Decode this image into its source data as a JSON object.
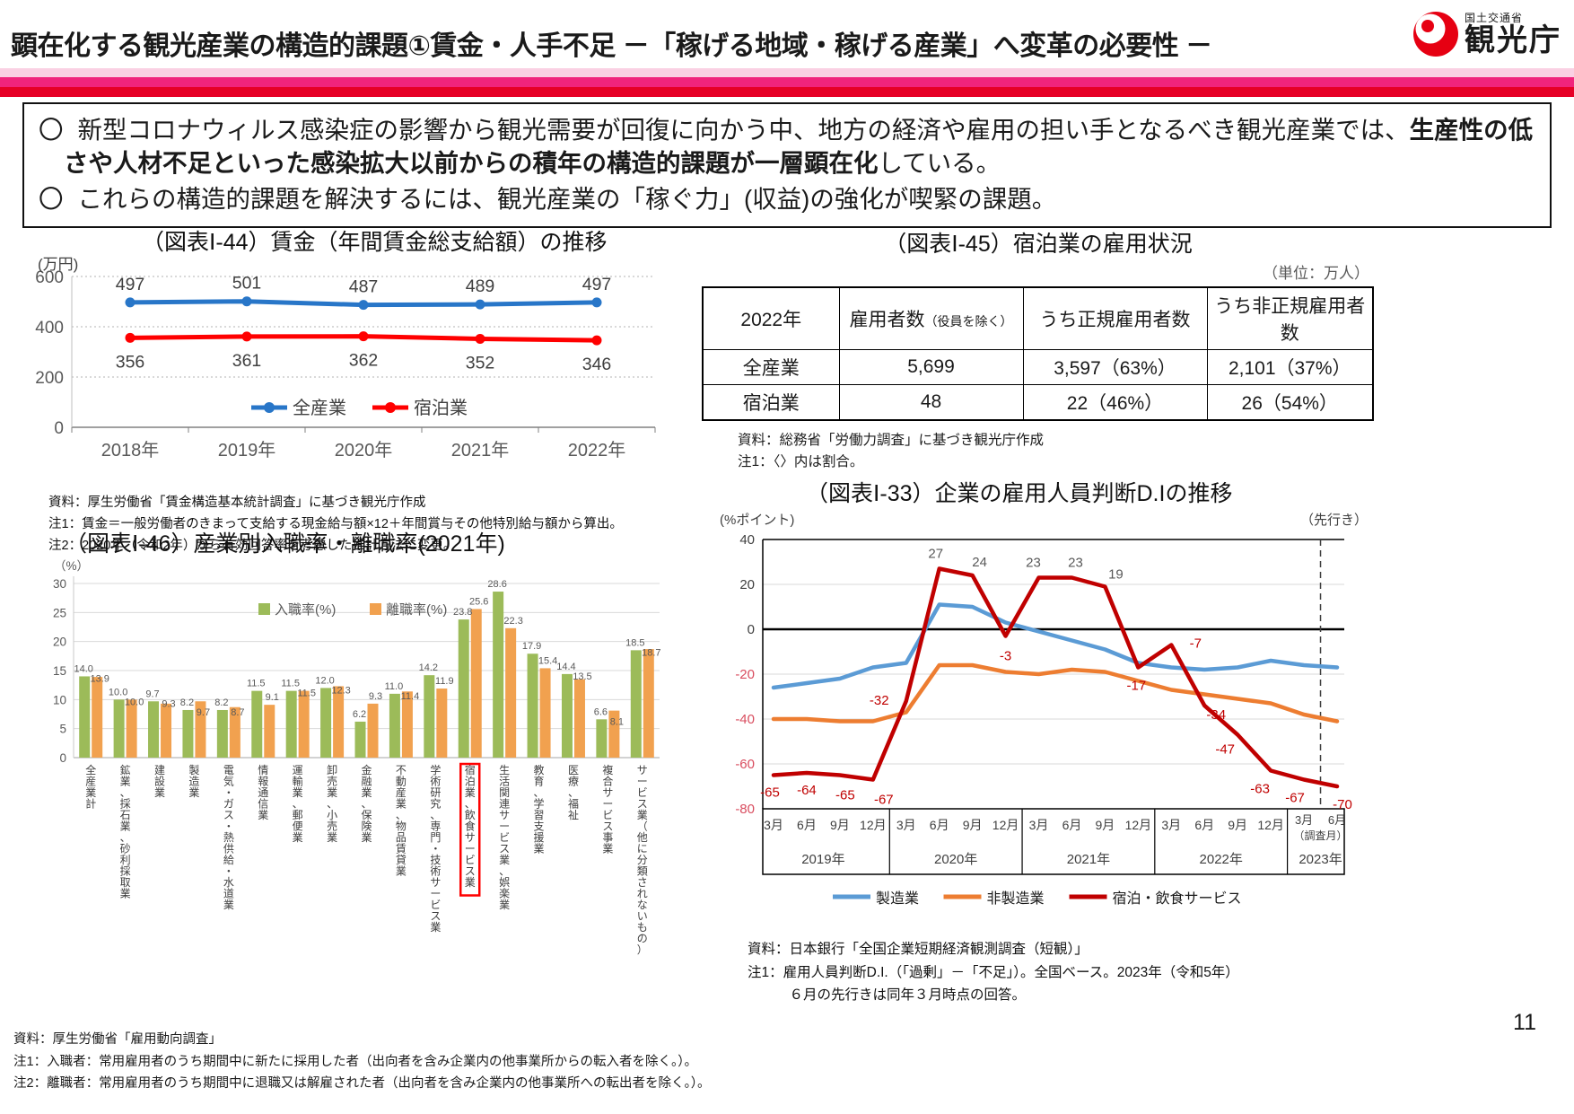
{
  "page": {
    "number": "11"
  },
  "header": {
    "title": "顕在化する観光産業の構造的課題①賃金・人手不足 －「稼げる地域・稼げる産業」へ変革の必要性 －",
    "logo_ministry": "国土交通省",
    "logo_agency": "観光庁",
    "logo_color": "#e60012",
    "stripe_colors": [
      "#fad0e3",
      "#f0247c",
      "#e60026"
    ]
  },
  "summary": {
    "bullet_marker": "〇",
    "b1_pre": "新型コロナウィルス感染症の影響から観光需要が回復に向かう中、地方の経済や雇用の担い手となるべき観光産業では、",
    "b1_bold": "生産性の低さや人材不足といった感染拡大以前からの積年の構造的課題が一層顕在化",
    "b1_post": "している。",
    "b2": "これらの構造的課題を解決するには、観光産業の「稼ぐ力」(収益)の強化が喫緊の課題。"
  },
  "fig44": {
    "title": "（図表Ⅰ-44）賃金（年間賃金総支給額）の推移",
    "notes": [
      "資料：厚生労働省「賃金構造基本統計調査」に基づき観光庁作成",
      "注1：賃金＝一般労働者のきまって支給する現金給与額×12＋年間賞与その他特別給与額から算出。",
      "注2：2020年（令和2年）から有効回答率を考慮した推計方法に変更。"
    ],
    "chart_data": {
      "type": "line",
      "categories": [
        "2018年",
        "2019年",
        "2020年",
        "2021年",
        "2022年"
      ],
      "series": [
        {
          "name": "全産業",
          "color": "#2876c8",
          "values": [
            497,
            501,
            487,
            489,
            497
          ],
          "label_pos": "above"
        },
        {
          "name": "宿泊業",
          "color": "#ff0000",
          "values": [
            356,
            361,
            362,
            352,
            346
          ],
          "label_pos": "below"
        }
      ],
      "ylabel": "(万円)",
      "ylim": [
        0,
        600
      ],
      "yticks": [
        0,
        200,
        400,
        600
      ],
      "grid": "dotted",
      "legend_position": "bottom-center"
    }
  },
  "fig45": {
    "title": "（図表Ⅰ-45）宿泊業の雇用状況",
    "unit_note": "（単位：万人）",
    "table": {
      "headers": [
        {
          "t": "2022年",
          "sub": ""
        },
        {
          "t": "雇用者数",
          "sub": "（役員を除く）"
        },
        {
          "t": "うち正規雇用者数",
          "sub": ""
        },
        {
          "t": "うち非正規雇用者数",
          "sub": ""
        }
      ],
      "rows": [
        [
          "全産業",
          "5,699",
          "3,597（63%）",
          "2,101（37%）"
        ],
        [
          "宿泊業",
          "48",
          "22（46%）",
          "26（54%）"
        ]
      ]
    },
    "notes": [
      "資料：総務省「労働力調査」に基づき観光庁作成",
      "注1：〈〉内は割合。"
    ]
  },
  "fig46": {
    "title": "（図表Ⅰ-46）産業別入職率・離職率(2021年)",
    "notes": [
      "資料：厚生労働省「雇用動向調査」",
      "注1：入職者：常用雇用者のうち期間中に新たに採用した者（出向者を含み企業内の他事業所からの転入者を除く。）。",
      "注2：離職者：常用雇用者のうち期間中に退職又は解雇された者（出向者を含み企業内の他事業所への転出者を除く。）。"
    ],
    "chart_data": {
      "type": "grouped-bar",
      "ylabel": "（%）",
      "ylim": [
        0,
        30
      ],
      "ytick_step": 5,
      "legend": [
        {
          "name": "入職率(%)",
          "color": "#9cbb59"
        },
        {
          "name": "離職率(%)",
          "color": "#f1a14f"
        }
      ],
      "highlight_box_color": "#ff0000",
      "categories": [
        {
          "label": "全産業計",
          "entry_rate": 14.0,
          "separation_rate": 13.9
        },
        {
          "label": "鉱業、採石業、砂利採取業",
          "entry_rate": 10.0,
          "separation_rate": 10.0
        },
        {
          "label": "建設業",
          "entry_rate": 9.7,
          "separation_rate": 9.3
        },
        {
          "label": "製造業",
          "entry_rate": 8.2,
          "separation_rate": 9.7
        },
        {
          "label": "電気・ガス・熱供給・水道業",
          "entry_rate": 8.2,
          "separation_rate": 8.7
        },
        {
          "label": "情報通信業",
          "entry_rate": 11.5,
          "separation_rate": 9.1
        },
        {
          "label": "運輸業、郵便業",
          "entry_rate": 11.5,
          "separation_rate": 11.5
        },
        {
          "label": "卸売業、小売業",
          "entry_rate": 12.0,
          "separation_rate": 12.3
        },
        {
          "label": "金融業、保険業",
          "entry_rate": 6.2,
          "separation_rate": 9.3
        },
        {
          "label": "不動産業、物品賃貸業",
          "entry_rate": 11.0,
          "separation_rate": 11.4
        },
        {
          "label": "学術研究、専門・技術サービス業",
          "entry_rate": 14.2,
          "separation_rate": 11.9
        },
        {
          "label": "宿泊業、飲食サービス業",
          "entry_rate": 23.8,
          "separation_rate": 25.6,
          "highlight": true
        },
        {
          "label": "生活関連サービス業、娯楽業",
          "entry_rate": 28.6,
          "separation_rate": 22.3
        },
        {
          "label": "教育、学習支援業",
          "entry_rate": 17.9,
          "separation_rate": 15.4
        },
        {
          "label": "医療、福祉",
          "entry_rate": 14.4,
          "separation_rate": 13.5
        },
        {
          "label": "複合サービス事業",
          "entry_rate": 6.6,
          "separation_rate": 8.1
        },
        {
          "label": "サービス業（他に分類されないもの）",
          "entry_rate": 18.5,
          "separation_rate": 18.7
        }
      ]
    }
  },
  "fig33": {
    "title": "（図表Ⅰ-33）企業の雇用人員判断D.Iの推移",
    "forecast_label": "（先行き）",
    "notes": [
      "資料：日本銀行「全国企業短期経済観測調査（短観）」",
      "注1：雇用人員判断D.I.（「過剰」－「不足」）。全国ベース。2023年（令和5年）",
      "　　　６月の先行きは同年３月時点の回答。"
    ],
    "chart_data": {
      "type": "line",
      "ylabel": "(%ポイント)",
      "ylim": [
        -80,
        40
      ],
      "yticks": [
        40,
        20,
        0,
        -20,
        -40,
        -60,
        -80
      ],
      "negative_tick_color": "#d94d5f",
      "x_groups": [
        {
          "year": "2019年",
          "quarters": [
            "3月",
            "6月",
            "9月",
            "12月"
          ]
        },
        {
          "year": "2020年",
          "quarters": [
            "3月",
            "6月",
            "9月",
            "12月"
          ]
        },
        {
          "year": "2021年",
          "quarters": [
            "3月",
            "6月",
            "9月",
            "12月"
          ]
        },
        {
          "year": "2022年",
          "quarters": [
            "3月",
            "6月",
            "9月",
            "12月"
          ]
        },
        {
          "year": "2023年",
          "quarters": [
            "3月",
            "6月"
          ],
          "note": "（調査月）"
        }
      ],
      "forecast_divider_between": [
        "2023年3月",
        "2023年6月"
      ],
      "series": [
        {
          "name": "製造業",
          "color": "#5b9bd5",
          "values": [
            -26,
            -24,
            -22,
            -17,
            -15,
            11,
            10,
            3,
            -1,
            -5,
            -9,
            -15,
            -17,
            -18,
            -17,
            -14,
            -16,
            -17
          ]
        },
        {
          "name": "非製造業",
          "color": "#ed7d31",
          "values": [
            -40,
            -40,
            -41,
            -41,
            -37,
            -16,
            -16,
            -19,
            -20,
            -18,
            -19,
            -23,
            -27,
            -29,
            -31,
            -33,
            -38,
            -41
          ]
        },
        {
          "name": "宿泊・飲食サービス",
          "color": "#c00000",
          "show_labels": true,
          "values": [
            -65,
            -64,
            -65,
            -67,
            -32,
            27,
            24,
            -3,
            23,
            23,
            19,
            -17,
            -7,
            -34,
            -47,
            -63,
            -67,
            -70
          ],
          "label_offsets": [
            [
              -4,
              24
            ],
            [
              0,
              24
            ],
            [
              6,
              27
            ],
            [
              12,
              27
            ],
            [
              -30,
              4
            ],
            [
              -4,
              -12
            ],
            [
              8,
              -10
            ],
            [
              0,
              27
            ],
            [
              -6,
              -12
            ],
            [
              4,
              -12
            ],
            [
              12,
              -9
            ],
            [
              -2,
              25
            ],
            [
              27,
              3
            ],
            [
              13,
              15
            ],
            [
              -14,
              21
            ],
            [
              -12,
              25
            ],
            [
              -10,
              25
            ],
            [
              6,
              25
            ]
          ],
          "positive_label_color": "#595959",
          "negative_label_color": "#c00000"
        }
      ]
    }
  }
}
